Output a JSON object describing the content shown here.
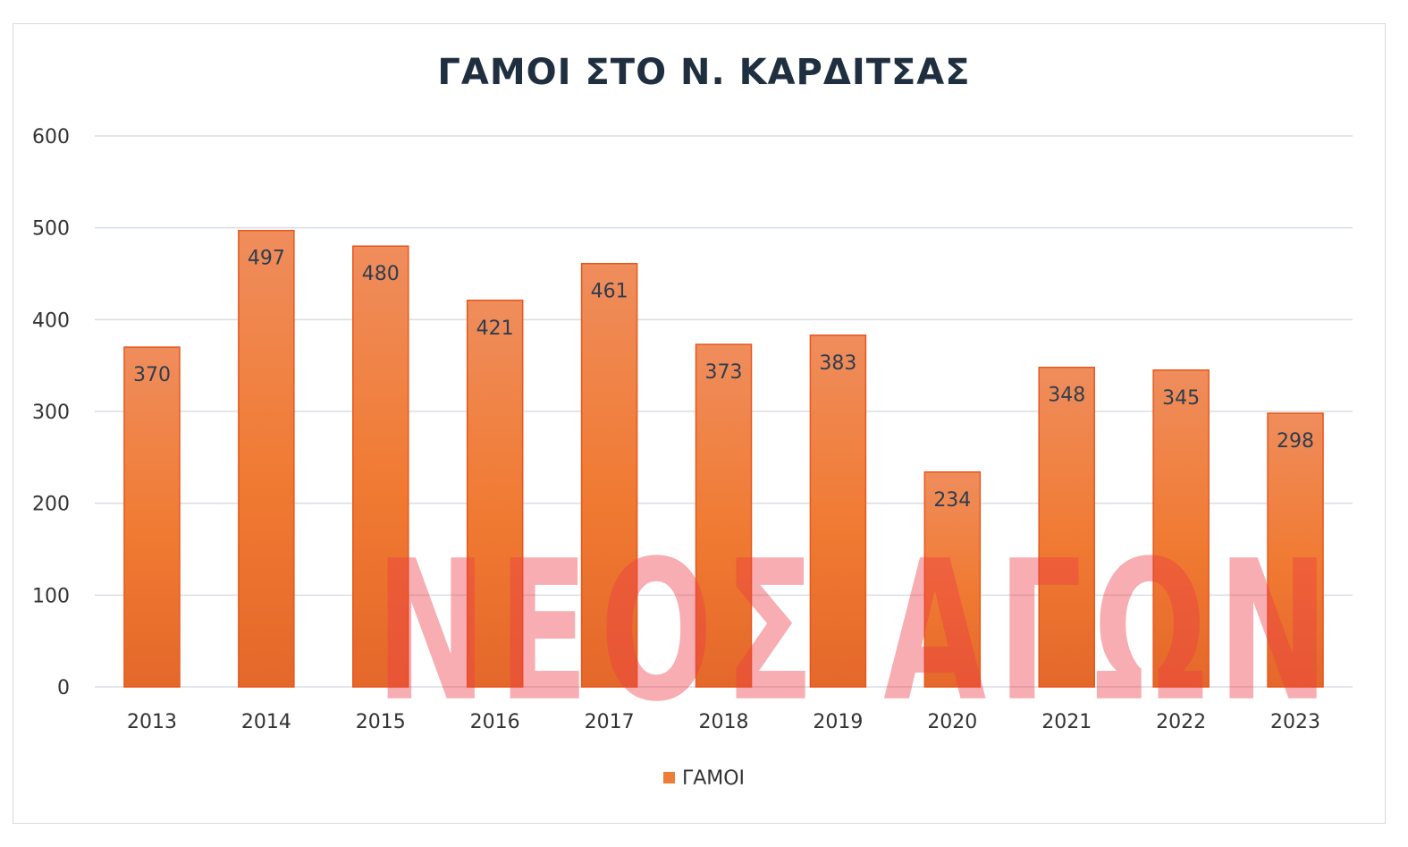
{
  "chart_data": {
    "type": "bar",
    "title": "ΓΑΜΟΙ ΣΤΟ Ν. ΚΑΡΔΙΤΣΑΣ",
    "categories": [
      "2013",
      "2014",
      "2015",
      "2016",
      "2017",
      "2018",
      "2019",
      "2020",
      "2021",
      "2022",
      "2023"
    ],
    "series": [
      {
        "name": "ΓΑΜΟΙ",
        "values": [
          370,
          497,
          480,
          421,
          461,
          373,
          383,
          234,
          348,
          345,
          298
        ],
        "color": "#ee7d3a"
      }
    ],
    "ylim": [
      0,
      600
    ],
    "yticks": [
      0,
      100,
      200,
      300,
      400,
      500,
      600
    ],
    "grid": true,
    "legend": "bottom",
    "xlabel": "",
    "ylabel": ""
  },
  "watermark": "ΝΕΟΣ ΑΓΩΝ"
}
